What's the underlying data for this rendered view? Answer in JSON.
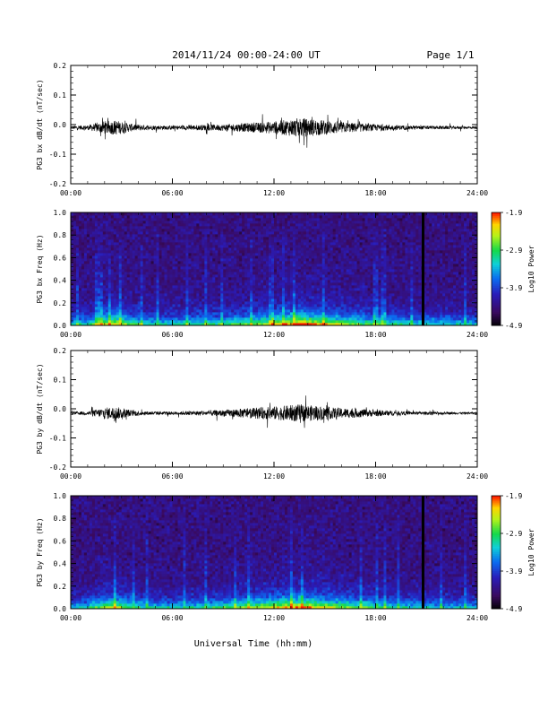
{
  "header": {
    "date_range": "2014/11/24  00:00-24:00 UT",
    "page": "Page 1/1"
  },
  "xlabel": "Universal Time (hh:mm)",
  "xticks": [
    "00:00",
    "06:00",
    "12:00",
    "18:00",
    "24:00"
  ],
  "chart_data": [
    {
      "type": "line",
      "ylabel": "PG3 bx dB/dt (nT/sec)",
      "ylim": [
        -0.2,
        0.2
      ],
      "yticks": [
        "0.2",
        "0.1",
        "0.0",
        "-0.1",
        "-0.2"
      ],
      "xlim": [
        0,
        24
      ],
      "baseline": -0.01,
      "envelope": {
        "x": [
          0,
          1,
          2,
          2.7,
          3.5,
          4.5,
          6,
          7,
          9,
          11,
          12.5,
          13.5,
          14.5,
          15.5,
          16.5,
          18,
          20,
          22,
          24
        ],
        "amp": [
          0.01,
          0.015,
          0.04,
          0.045,
          0.025,
          0.015,
          0.012,
          0.015,
          0.02,
          0.03,
          0.045,
          0.06,
          0.05,
          0.04,
          0.03,
          0.02,
          0.012,
          0.01,
          0.008
        ]
      }
    },
    {
      "type": "heatmap",
      "ylabel": "PG3 bx Freq (Hz)",
      "ylim": [
        0.0,
        1.0
      ],
      "yticks": [
        "1.0",
        "0.8",
        "0.6",
        "0.4",
        "0.2",
        "0.0"
      ],
      "xlim": [
        0,
        24
      ],
      "colorbar": {
        "label": "Log10 Power",
        "ticks": [
          "-1.9",
          "-2.9",
          "-3.9",
          "-4.9"
        ],
        "range": [
          -4.9,
          -1.9
        ]
      },
      "data_gap_hour": 20.8
    },
    {
      "type": "line",
      "ylabel": "PG3 by dB/dt (nT/sec)",
      "ylim": [
        -0.2,
        0.2
      ],
      "yticks": [
        "0.2",
        "0.1",
        "0.0",
        "-0.1",
        "-0.2"
      ],
      "xlim": [
        0,
        24
      ],
      "baseline": -0.015,
      "envelope": {
        "x": [
          0,
          1,
          2,
          2.7,
          3.5,
          4.5,
          6,
          7,
          9,
          11,
          12.5,
          13.5,
          14.5,
          15.5,
          16.5,
          18,
          20,
          22,
          24
        ],
        "amp": [
          0.008,
          0.012,
          0.035,
          0.04,
          0.02,
          0.012,
          0.01,
          0.012,
          0.02,
          0.035,
          0.045,
          0.055,
          0.045,
          0.035,
          0.03,
          0.02,
          0.01,
          0.008,
          0.006
        ]
      }
    },
    {
      "type": "heatmap",
      "ylabel": "PG3 by Freq (Hz)",
      "ylim": [
        0.0,
        1.0
      ],
      "yticks": [
        "1.0",
        "0.8",
        "0.6",
        "0.4",
        "0.2",
        "0.0"
      ],
      "xlim": [
        0,
        24
      ],
      "colorbar": {
        "label": "Log10 Power",
        "ticks": [
          "-1.9",
          "-2.9",
          "-3.9",
          "-4.9"
        ],
        "range": [
          -4.9,
          -1.9
        ]
      },
      "data_gap_hour": 20.8
    }
  ]
}
